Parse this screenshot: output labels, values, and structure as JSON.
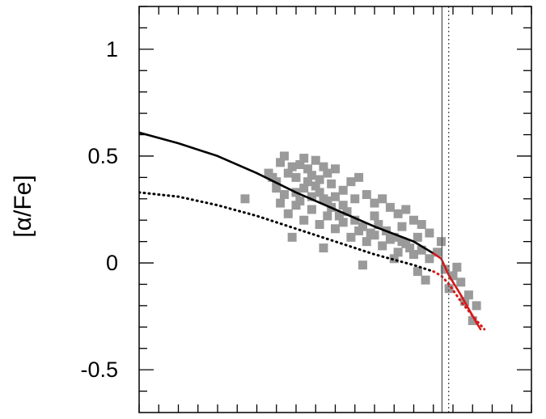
{
  "chart_data": {
    "type": "scatter",
    "ylabel": "[α/Fe]",
    "xlabel": "",
    "ylim": [
      -0.7,
      1.2
    ],
    "xlim": [
      0,
      1
    ],
    "y_ticks": [
      {
        "value": 1,
        "label": "1"
      },
      {
        "value": 0.5,
        "label": "0.5"
      },
      {
        "value": 0,
        "label": "0"
      },
      {
        "value": -0.5,
        "label": "-0.5"
      }
    ],
    "x_tick_count": 21,
    "grid": false,
    "colors": {
      "points": "#9a9a9a",
      "model": "#000000",
      "model_late": "#d61a1a",
      "vline": "#555555"
    },
    "vertical_lines": [
      {
        "x": 0.772,
        "style": "solid"
      },
      {
        "x": 0.789,
        "style": "dotted"
      }
    ],
    "series": [
      {
        "style": "solid",
        "color": "#000000",
        "points": [
          [
            0.0,
            0.61
          ],
          [
            0.1,
            0.56
          ],
          [
            0.2,
            0.5
          ],
          [
            0.3,
            0.42
          ],
          [
            0.4,
            0.33
          ],
          [
            0.5,
            0.25
          ],
          [
            0.6,
            0.17
          ],
          [
            0.7,
            0.1
          ],
          [
            0.75,
            0.045
          ]
        ]
      },
      {
        "style": "dotted",
        "color": "#000000",
        "points": [
          [
            0.0,
            0.33
          ],
          [
            0.1,
            0.31
          ],
          [
            0.2,
            0.27
          ],
          [
            0.3,
            0.22
          ],
          [
            0.4,
            0.16
          ],
          [
            0.5,
            0.1
          ],
          [
            0.6,
            0.04
          ],
          [
            0.7,
            -0.01
          ],
          [
            0.75,
            -0.04
          ]
        ]
      },
      {
        "style": "solid",
        "color": "#d61a1a",
        "points": [
          [
            0.75,
            0.045
          ],
          [
            0.77,
            0.02
          ],
          [
            0.79,
            -0.06
          ],
          [
            0.82,
            -0.15
          ],
          [
            0.86,
            -0.28
          ],
          [
            0.87,
            -0.31
          ]
        ]
      },
      {
        "style": "dotted",
        "color": "#d61a1a",
        "points": [
          [
            0.75,
            -0.04
          ],
          [
            0.77,
            -0.06
          ],
          [
            0.79,
            -0.1
          ],
          [
            0.82,
            -0.18
          ],
          [
            0.86,
            -0.27
          ],
          [
            0.88,
            -0.31
          ]
        ]
      }
    ],
    "points": [
      [
        0.33,
        0.42
      ],
      [
        0.34,
        0.4
      ],
      [
        0.35,
        0.38
      ],
      [
        0.36,
        0.47
      ],
      [
        0.37,
        0.5
      ],
      [
        0.38,
        0.42
      ],
      [
        0.39,
        0.45
      ],
      [
        0.4,
        0.4
      ],
      [
        0.41,
        0.46
      ],
      [
        0.42,
        0.49
      ],
      [
        0.43,
        0.44
      ],
      [
        0.44,
        0.41
      ],
      [
        0.45,
        0.48
      ],
      [
        0.46,
        0.39
      ],
      [
        0.47,
        0.45
      ],
      [
        0.48,
        0.42
      ],
      [
        0.49,
        0.37
      ],
      [
        0.5,
        0.44
      ],
      [
        0.4,
        0.33
      ],
      [
        0.42,
        0.35
      ],
      [
        0.44,
        0.31
      ],
      [
        0.46,
        0.33
      ],
      [
        0.48,
        0.29
      ],
      [
        0.5,
        0.31
      ],
      [
        0.52,
        0.27
      ],
      [
        0.54,
        0.38
      ],
      [
        0.55,
        0.3
      ],
      [
        0.56,
        0.4
      ],
      [
        0.58,
        0.32
      ],
      [
        0.6,
        0.28
      ],
      [
        0.62,
        0.3
      ],
      [
        0.64,
        0.26
      ],
      [
        0.66,
        0.23
      ],
      [
        0.68,
        0.25
      ],
      [
        0.7,
        0.2
      ],
      [
        0.72,
        0.18
      ],
      [
        0.36,
        0.28
      ],
      [
        0.38,
        0.23
      ],
      [
        0.4,
        0.27
      ],
      [
        0.42,
        0.2
      ],
      [
        0.44,
        0.25
      ],
      [
        0.46,
        0.18
      ],
      [
        0.48,
        0.22
      ],
      [
        0.5,
        0.16
      ],
      [
        0.52,
        0.19
      ],
      [
        0.54,
        0.12
      ],
      [
        0.56,
        0.15
      ],
      [
        0.58,
        0.1
      ],
      [
        0.6,
        0.13
      ],
      [
        0.62,
        0.08
      ],
      [
        0.64,
        0.11
      ],
      [
        0.66,
        0.05
      ],
      [
        0.68,
        0.09
      ],
      [
        0.7,
        0.04
      ],
      [
        0.72,
        0.06
      ],
      [
        0.74,
        0.02
      ],
      [
        0.76,
        0.05
      ],
      [
        0.78,
        -0.03
      ],
      [
        0.8,
        -0.06
      ],
      [
        0.82,
        -0.09
      ],
      [
        0.84,
        -0.15
      ],
      [
        0.86,
        -0.2
      ],
      [
        0.85,
        -0.27
      ],
      [
        0.57,
        -0.01
      ],
      [
        0.47,
        0.07
      ],
      [
        0.39,
        0.12
      ],
      [
        0.27,
        0.3
      ],
      [
        0.52,
        0.34
      ],
      [
        0.6,
        0.22
      ],
      [
        0.67,
        0.17
      ],
      [
        0.74,
        0.14
      ],
      [
        0.77,
        0.1
      ],
      [
        0.79,
        -0.12
      ],
      [
        0.81,
        -0.02
      ],
      [
        0.83,
        -0.18
      ],
      [
        0.65,
        0.02
      ],
      [
        0.71,
        -0.04
      ],
      [
        0.73,
        -0.08
      ],
      [
        0.35,
        0.35
      ],
      [
        0.37,
        0.32
      ],
      [
        0.41,
        0.29
      ],
      [
        0.43,
        0.38
      ],
      [
        0.45,
        0.36
      ],
      [
        0.47,
        0.3
      ],
      [
        0.49,
        0.26
      ],
      [
        0.51,
        0.22
      ],
      [
        0.53,
        0.24
      ],
      [
        0.55,
        0.2
      ],
      [
        0.57,
        0.17
      ],
      [
        0.59,
        0.14
      ],
      [
        0.61,
        0.18
      ],
      [
        0.63,
        0.15
      ],
      [
        0.65,
        0.12
      ],
      [
        0.67,
        0.1
      ],
      [
        0.69,
        0.07
      ],
      [
        0.71,
        0.12
      ]
    ]
  }
}
